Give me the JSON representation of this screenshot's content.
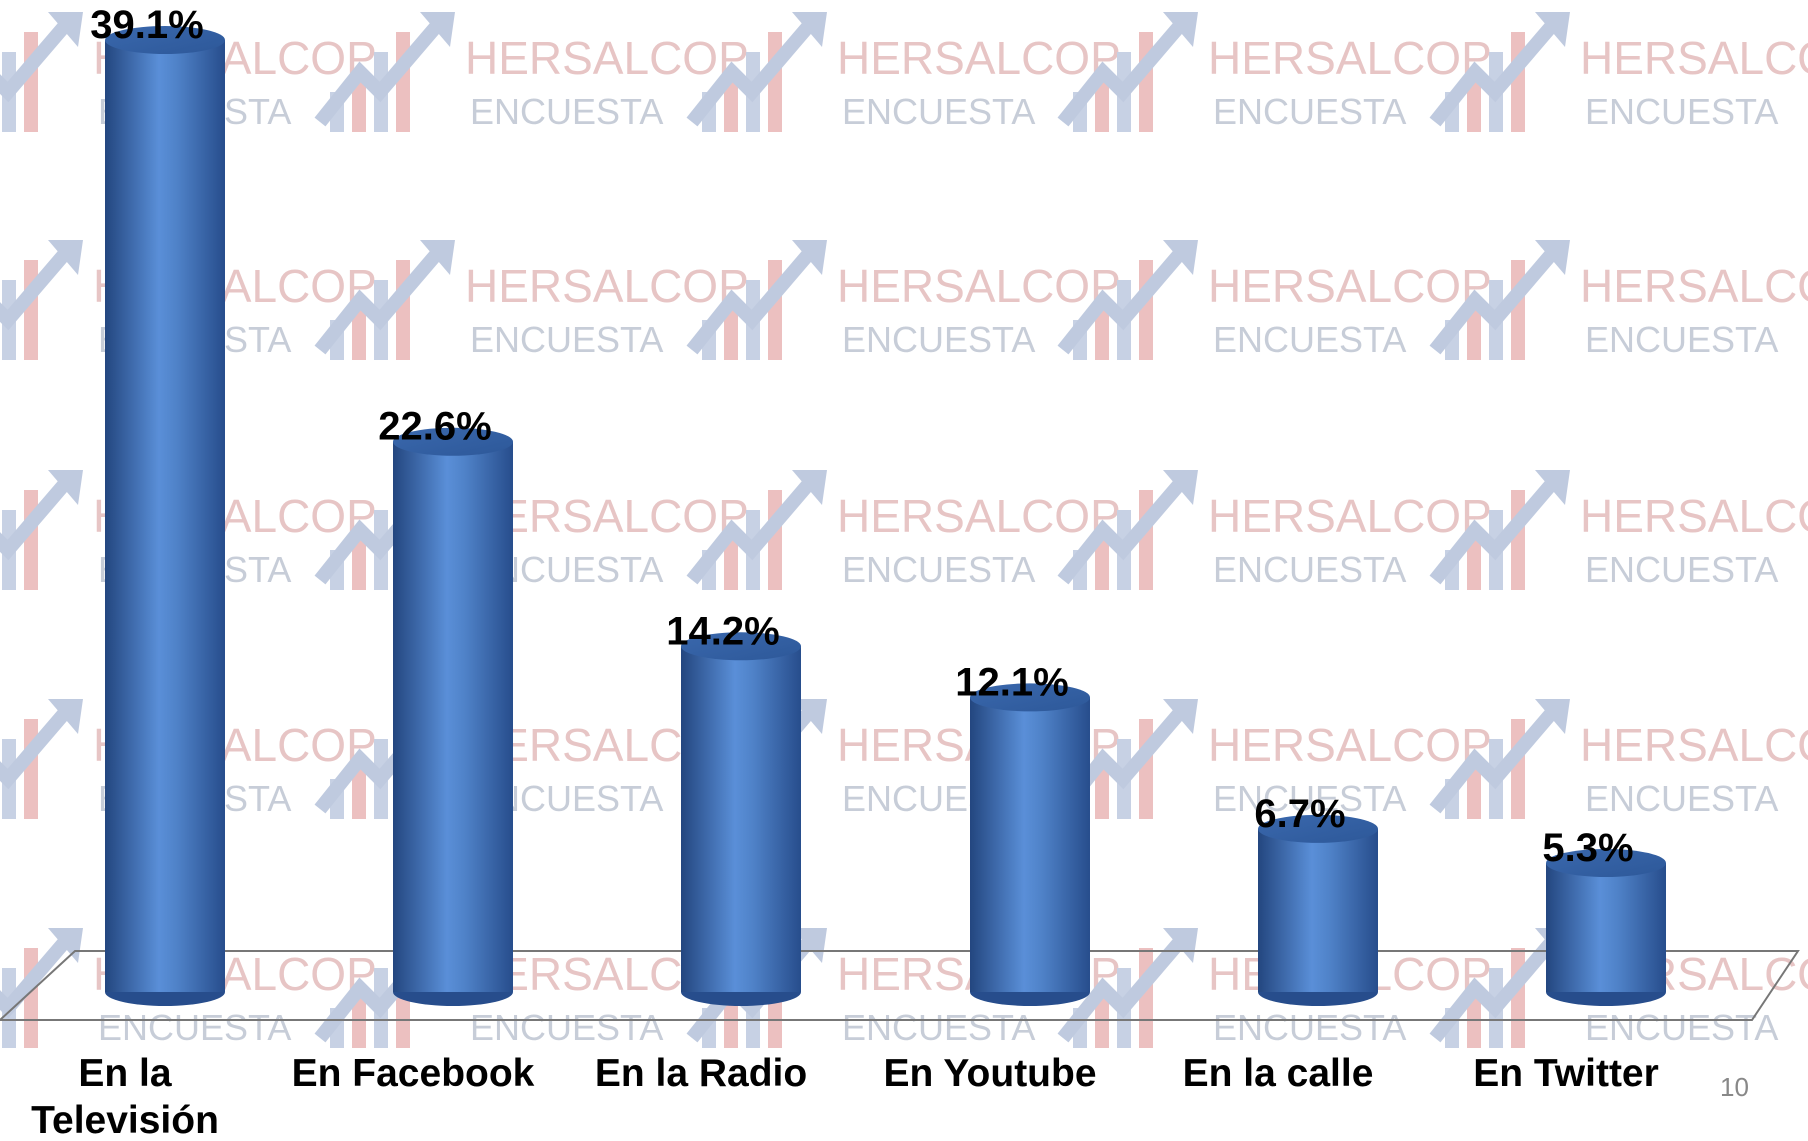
{
  "chart_data": {
    "type": "bar",
    "categories": [
      "En la Televisión",
      "En Facebook",
      "En la Radio",
      "En Youtube",
      "En la calle",
      "En Twitter"
    ],
    "values": [
      39.1,
      22.6,
      14.2,
      12.1,
      6.7,
      5.3
    ],
    "value_labels": [
      "39.1%",
      "22.6%",
      "14.2%",
      "12.1%",
      "6.7%",
      "5.3%"
    ],
    "color": "#4f81c9"
  },
  "watermark": {
    "title": "HERSALCOP",
    "subtitle": "ENCUESTA"
  },
  "page_number": "10"
}
